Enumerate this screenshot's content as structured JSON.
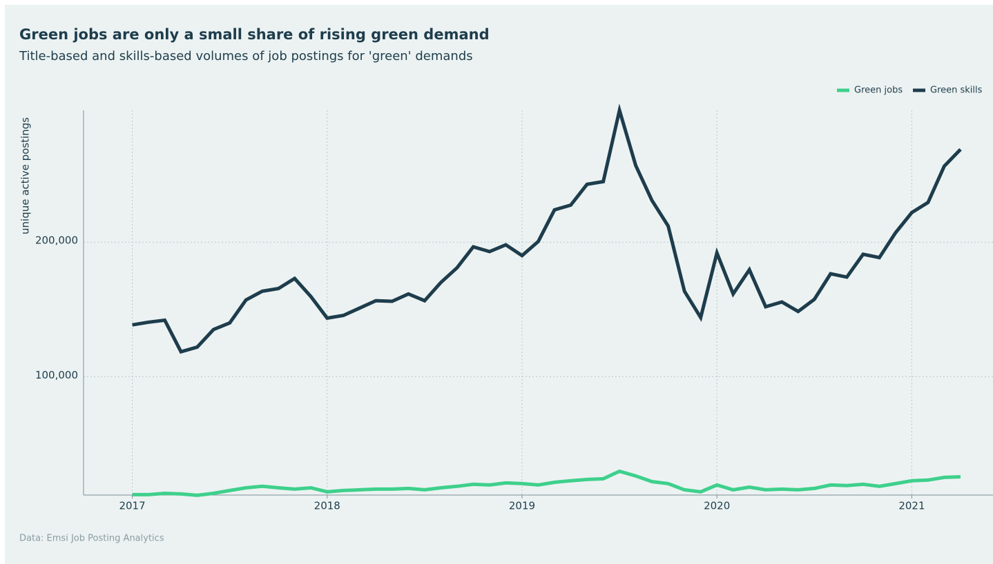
{
  "chart_data": {
    "type": "line",
    "title": "Green jobs are only a small share of rising green demand",
    "subtitle": "Title-based and skills-based volumes of job postings for 'green' demands",
    "ylabel": "unique active postings",
    "source": "Data: Emsi Job Posting Analytics",
    "legend": "top-right",
    "grid": true,
    "x": [
      "2017-01",
      "2017-02",
      "2017-03",
      "2017-04",
      "2017-05",
      "2017-06",
      "2017-07",
      "2017-08",
      "2017-09",
      "2017-10",
      "2017-11",
      "2017-12",
      "2018-01",
      "2018-02",
      "2018-03",
      "2018-04",
      "2018-05",
      "2018-06",
      "2018-07",
      "2018-08",
      "2018-09",
      "2018-10",
      "2018-11",
      "2018-12",
      "2019-01",
      "2019-02",
      "2019-03",
      "2019-04",
      "2019-05",
      "2019-06",
      "2019-07",
      "2019-08",
      "2019-09",
      "2019-10",
      "2019-11",
      "2019-12",
      "2020-01",
      "2020-02",
      "2020-03",
      "2020-04",
      "2020-05",
      "2020-06",
      "2020-07",
      "2020-08",
      "2020-09",
      "2020-10",
      "2020-11",
      "2020-12",
      "2021-01",
      "2021-02",
      "2021-03",
      "2021-04"
    ],
    "xlim": [
      "2016-10",
      "2021-06"
    ],
    "xticks": [
      {
        "value": "2017-01",
        "label": "2017"
      },
      {
        "value": "2018-01",
        "label": "2018"
      },
      {
        "value": "2019-01",
        "label": "2019"
      },
      {
        "value": "2020-01",
        "label": "2020"
      },
      {
        "value": "2021-01",
        "label": "2021"
      }
    ],
    "ylim": [
      12000,
      298000
    ],
    "yticks": [
      {
        "value": 100000,
        "label": "100,000"
      },
      {
        "value": 200000,
        "label": "200,000"
      }
    ],
    "series": [
      {
        "name": "Green jobs",
        "color": "#3ed08c",
        "values": [
          12300,
          12300,
          13300,
          12800,
          11800,
          13300,
          15400,
          17400,
          18500,
          17400,
          16400,
          17400,
          14400,
          15400,
          15900,
          16400,
          16400,
          16900,
          15900,
          17400,
          18500,
          20000,
          19500,
          21000,
          20500,
          19500,
          21500,
          22600,
          23600,
          24100,
          29700,
          26200,
          22000,
          20500,
          15900,
          14400,
          19500,
          15900,
          17900,
          15900,
          16400,
          15900,
          16900,
          19500,
          19000,
          20000,
          18500,
          20500,
          22600,
          23100,
          25100,
          25600
        ]
      },
      {
        "name": "Green skills",
        "color": "#1e3d4c",
        "values": [
          138500,
          140500,
          142000,
          118500,
          122000,
          135000,
          140000,
          157000,
          163500,
          165500,
          173000,
          159500,
          143500,
          145500,
          151000,
          156500,
          156000,
          161500,
          156500,
          170000,
          181000,
          196500,
          193000,
          198000,
          190000,
          200500,
          224000,
          227500,
          243000,
          245000,
          298000,
          257000,
          231000,
          212000,
          163500,
          144000,
          192000,
          161500,
          179500,
          152000,
          155500,
          148500,
          157500,
          176500,
          174000,
          191000,
          188500,
          207000,
          222000,
          229500,
          256500,
          269000
        ]
      }
    ]
  }
}
